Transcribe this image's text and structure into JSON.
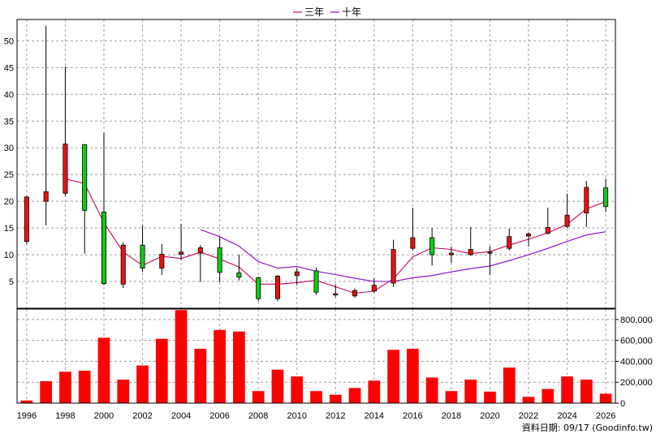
{
  "legend": [
    {
      "name": "三年",
      "color": "#cc0066"
    },
    {
      "name": "十年",
      "color": "#8800cc"
    }
  ],
  "footer": "資料日期: 09/17 (Goodinfo.tw)",
  "chart_data": {
    "type": "candlestick",
    "colors": {
      "up": "#ee1111",
      "down": "#11cc11",
      "volume": "#ff0000",
      "ma3": "#cc0066",
      "ma10": "#8800cc"
    },
    "x_range": [
      1995.5,
      2026.5
    ],
    "price_axis": {
      "ylim": [
        0,
        54
      ],
      "ticks": [
        5,
        10,
        15,
        20,
        25,
        30,
        35,
        40,
        45,
        50
      ],
      "grid": true
    },
    "volume_axis": {
      "ylim": [
        0,
        900000
      ],
      "ticks": [
        0,
        200000,
        400000,
        600000,
        800000
      ],
      "tick_labels": [
        "0",
        "200,000",
        "400,000",
        "600,000",
        "800,000"
      ],
      "grid": true
    },
    "x_tick_labels": [
      "1996",
      "1998",
      "2000",
      "2002",
      "2004",
      "2006",
      "2008",
      "2010",
      "2012",
      "2014",
      "2016",
      "2018",
      "2020",
      "2022",
      "2024",
      "2026"
    ],
    "candles": [
      {
        "year": 1996,
        "open": 12.5,
        "close": 20.8,
        "high": 21.0,
        "low": 12.0,
        "volume": 25000
      },
      {
        "year": 1997,
        "open": 20.0,
        "close": 21.8,
        "high": 52.8,
        "low": 15.5,
        "volume": 210000
      },
      {
        "year": 1998,
        "open": 21.5,
        "close": 30.7,
        "high": 45.2,
        "low": 21.0,
        "volume": 300000
      },
      {
        "year": 1999,
        "open": 30.6,
        "close": 18.3,
        "high": 30.7,
        "low": 10.2,
        "volume": 310000
      },
      {
        "year": 2000,
        "open": 18.0,
        "close": 4.6,
        "high": 32.8,
        "low": 4.3,
        "volume": 625000
      },
      {
        "year": 2001,
        "open": 4.5,
        "close": 11.8,
        "high": 12.3,
        "low": 3.8,
        "volume": 225000
      },
      {
        "year": 2002,
        "open": 11.8,
        "close": 7.5,
        "high": 15.5,
        "low": 6.8,
        "volume": 360000
      },
      {
        "year": 2003,
        "open": 7.5,
        "close": 10.1,
        "high": 12.0,
        "low": 6.2,
        "volume": 615000
      },
      {
        "year": 2004,
        "open": 10.1,
        "close": 10.5,
        "high": 15.8,
        "low": 9.0,
        "volume": 890000
      },
      {
        "year": 2005,
        "open": 10.3,
        "close": 11.3,
        "high": 11.8,
        "low": 4.9,
        "volume": 520000
      },
      {
        "year": 2006,
        "open": 11.3,
        "close": 6.7,
        "high": 13.3,
        "low": 4.9,
        "volume": 700000
      },
      {
        "year": 2007,
        "open": 6.6,
        "close": 5.8,
        "high": 10.0,
        "low": 5.2,
        "volume": 685000
      },
      {
        "year": 2008,
        "open": 5.7,
        "close": 1.8,
        "high": 5.9,
        "low": 1.3,
        "volume": 115000
      },
      {
        "year": 2009,
        "open": 1.8,
        "close": 6.0,
        "high": 6.2,
        "low": 1.3,
        "volume": 320000
      },
      {
        "year": 2010,
        "open": 6.1,
        "close": 6.8,
        "high": 7.5,
        "low": 4.3,
        "volume": 255000
      },
      {
        "year": 2011,
        "open": 7.0,
        "close": 3.0,
        "high": 7.6,
        "low": 2.5,
        "volume": 115000
      },
      {
        "year": 2012,
        "open": 2.5,
        "close": 2.7,
        "high": 4.4,
        "low": 2.1,
        "volume": 80000
      },
      {
        "year": 2013,
        "open": 2.3,
        "close": 3.3,
        "high": 3.7,
        "low": 2.0,
        "volume": 145000
      },
      {
        "year": 2014,
        "open": 3.2,
        "close": 4.3,
        "high": 5.6,
        "low": 2.9,
        "volume": 215000
      },
      {
        "year": 2015,
        "open": 4.7,
        "close": 11.0,
        "high": 12.8,
        "low": 4.0,
        "volume": 510000
      },
      {
        "year": 2016,
        "open": 11.2,
        "close": 13.2,
        "high": 18.8,
        "low": 10.8,
        "volume": 520000
      },
      {
        "year": 2017,
        "open": 13.2,
        "close": 10.0,
        "high": 15.0,
        "low": 8.0,
        "volume": 245000
      },
      {
        "year": 2018,
        "open": 10.0,
        "close": 10.3,
        "high": 11.5,
        "low": 8.5,
        "volume": 115000
      },
      {
        "year": 2019,
        "open": 10.0,
        "close": 11.0,
        "high": 15.2,
        "low": 9.8,
        "volume": 225000
      },
      {
        "year": 2020,
        "open": 10.3,
        "close": 10.5,
        "high": 11.6,
        "low": 6.2,
        "volume": 110000
      },
      {
        "year": 2021,
        "open": 11.2,
        "close": 13.4,
        "high": 14.9,
        "low": 10.8,
        "volume": 340000
      },
      {
        "year": 2022,
        "open": 13.5,
        "close": 13.9,
        "high": 14.2,
        "low": 11.5,
        "volume": 60000
      },
      {
        "year": 2023,
        "open": 14.0,
        "close": 15.1,
        "high": 18.8,
        "low": 13.8,
        "volume": 135000
      },
      {
        "year": 2024,
        "open": 15.3,
        "close": 17.4,
        "high": 21.4,
        "low": 15.0,
        "volume": 255000
      },
      {
        "year": 2025,
        "open": 17.8,
        "close": 22.6,
        "high": 23.8,
        "low": 15.2,
        "volume": 225000
      },
      {
        "year": 2026,
        "open": 22.5,
        "close": 19.0,
        "high": 24.2,
        "low": 18.0,
        "volume": 90000
      }
    ],
    "series": [
      {
        "name": "三年",
        "x": [
          1998,
          1999,
          2000,
          2001,
          2002,
          2003,
          2004,
          2005,
          2006,
          2007,
          2008,
          2009,
          2010,
          2011,
          2012,
          2013,
          2014,
          2015,
          2016,
          2017,
          2018,
          2019,
          2020,
          2021,
          2022,
          2023,
          2024,
          2025,
          2026
        ],
        "values": [
          24.2,
          23.3,
          16.0,
          10.5,
          8.0,
          9.7,
          9.3,
          10.5,
          9.2,
          7.7,
          4.5,
          4.5,
          4.8,
          5.2,
          4.0,
          2.8,
          3.2,
          5.5,
          9.6,
          11.3,
          11.0,
          10.2,
          10.6,
          11.8,
          12.9,
          14.1,
          15.7,
          18.6,
          19.9
        ]
      },
      {
        "name": "十年",
        "x": [
          2005,
          2006,
          2007,
          2008,
          2009,
          2010,
          2011,
          2012,
          2013,
          2014,
          2015,
          2016,
          2017,
          2018,
          2019,
          2020,
          2021,
          2022,
          2023,
          2024,
          2025,
          2026
        ],
        "values": [
          14.7,
          13.4,
          11.6,
          8.7,
          7.5,
          7.8,
          6.9,
          6.3,
          5.6,
          5.0,
          5.0,
          5.7,
          6.1,
          6.8,
          7.4,
          7.9,
          8.9,
          10.0,
          11.2,
          12.5,
          13.7,
          14.3
        ]
      }
    ]
  }
}
